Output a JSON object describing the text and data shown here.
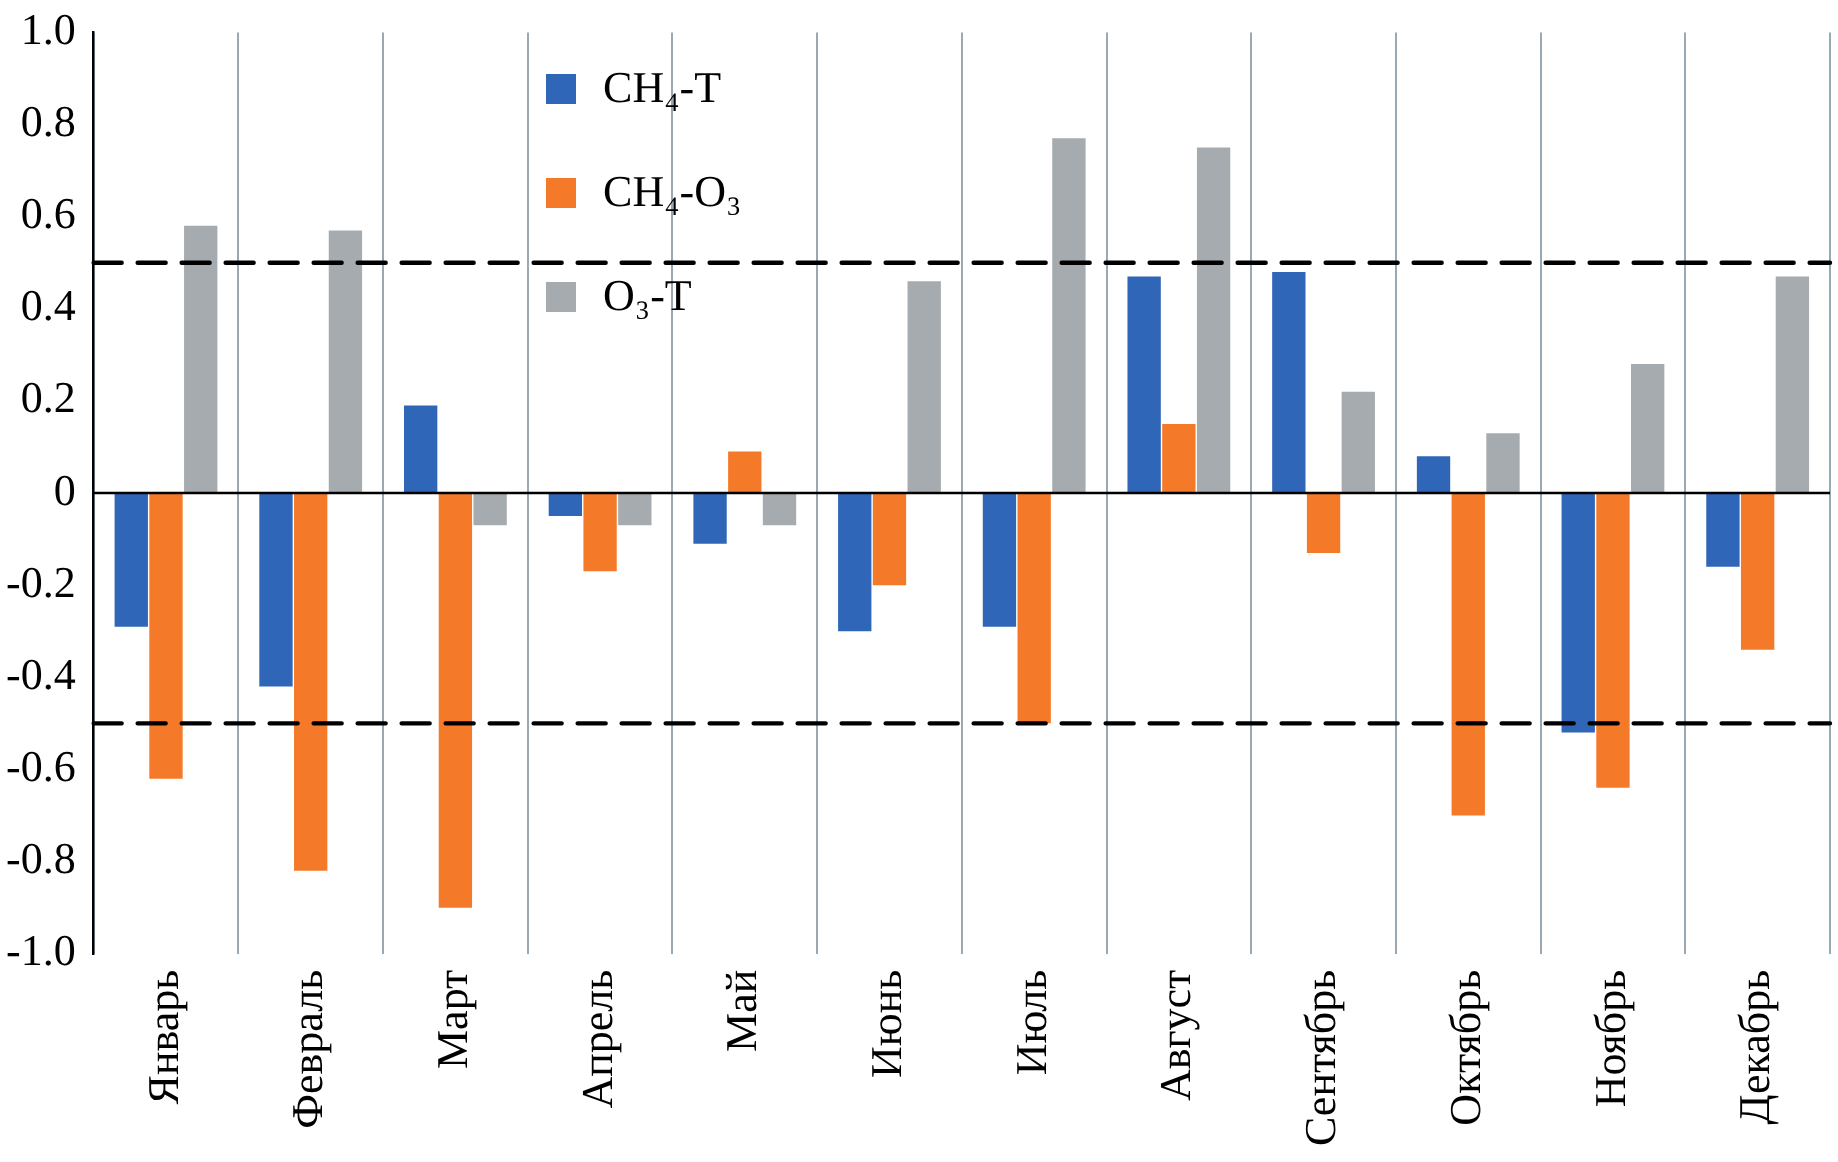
{
  "chart_data": {
    "type": "bar",
    "categories": [
      "Январь",
      "Февраль",
      "Март",
      "Апрель",
      "Май",
      "Июнь",
      "Июль",
      "Август",
      "Сентябрь",
      "Октябрь",
      "Ноябрь",
      "Декабрь"
    ],
    "series": [
      {
        "name": "CH₄-T",
        "color": "#2f66b8",
        "values": [
          -0.29,
          -0.42,
          0.19,
          -0.05,
          -0.11,
          -0.3,
          -0.29,
          0.47,
          0.48,
          0.08,
          -0.52,
          -0.16
        ]
      },
      {
        "name": "CH₄-O₃",
        "color": "#f47a2a",
        "values": [
          -0.62,
          -0.82,
          -0.9,
          -0.17,
          0.09,
          -0.2,
          -0.5,
          0.15,
          -0.13,
          -0.7,
          -0.64,
          -0.34
        ]
      },
      {
        "name": "O₃-T",
        "color": "#a5abae",
        "values": [
          0.58,
          0.57,
          -0.07,
          -0.07,
          -0.07,
          0.46,
          0.77,
          0.75,
          0.22,
          0.13,
          0.28,
          0.47
        ]
      }
    ],
    "ylim": [
      -1.0,
      1.0
    ],
    "yticks": [
      {
        "value": 1.0,
        "label": "1.0"
      },
      {
        "value": 0.8,
        "label": "0.8"
      },
      {
        "value": 0.6,
        "label": "0.6"
      },
      {
        "value": 0.4,
        "label": "0.4"
      },
      {
        "value": 0.2,
        "label": "0.2"
      },
      0,
      {
        "value": -0.2,
        "label": "-0.2"
      },
      {
        "value": -0.4,
        "label": "-0.4"
      },
      {
        "value": -0.6,
        "label": "-0.6"
      },
      {
        "value": -0.8,
        "label": "-0.8"
      },
      {
        "value": -1.0,
        "label": "-1.0"
      }
    ],
    "ref_lines": [
      {
        "axis": "y",
        "value": 0.5,
        "color": "#000000",
        "line_style": "dashed"
      },
      {
        "axis": "y",
        "value": -0.5,
        "color": "#000000",
        "line_style": "dashed"
      }
    ],
    "grid": "x",
    "legend": "top left"
  }
}
